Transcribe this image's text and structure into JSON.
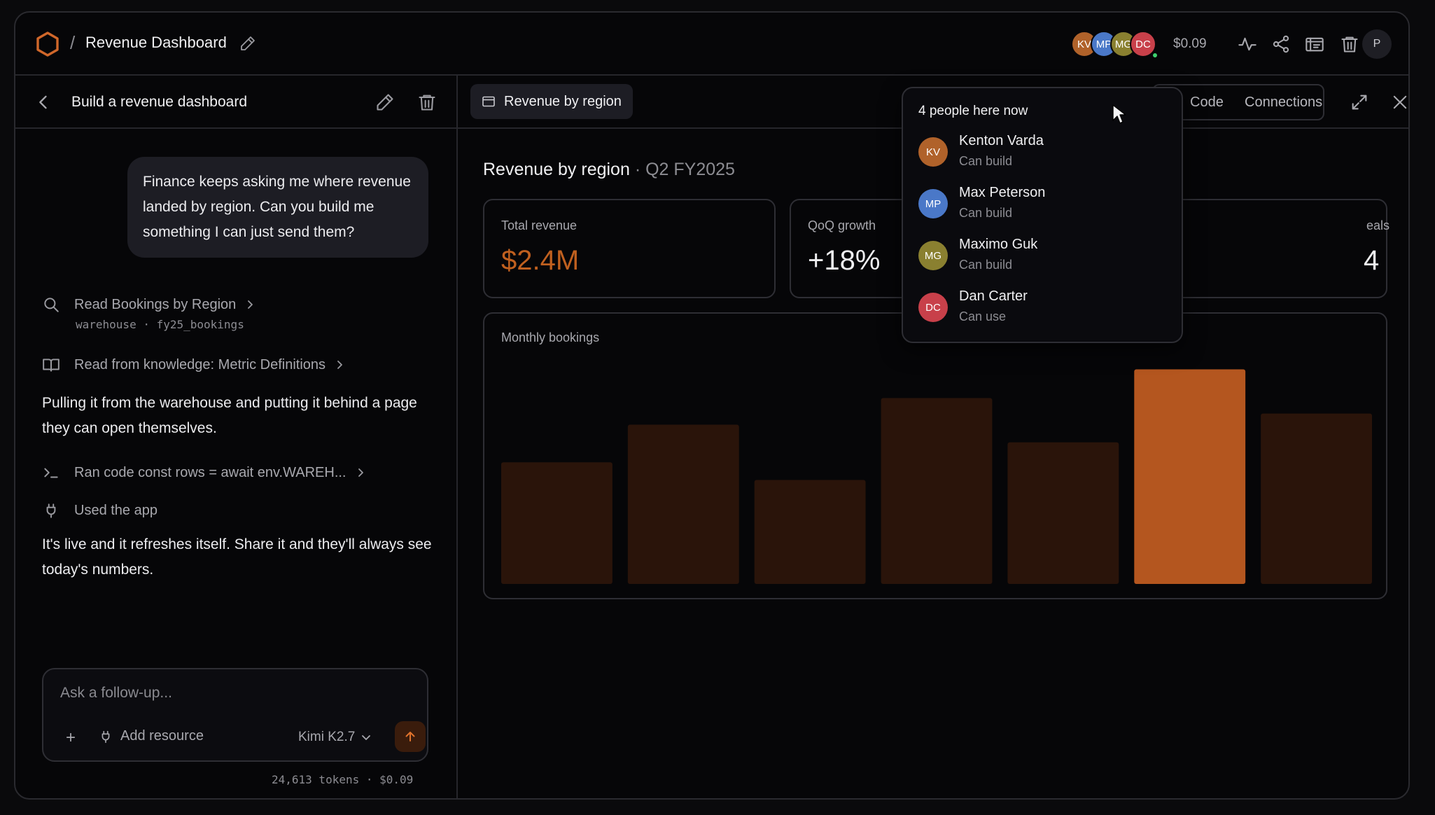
{
  "header": {
    "title": "Revenue Dashboard",
    "slash": "/",
    "cost": "$0.09",
    "user_initial": "P",
    "collaborators": [
      {
        "initials": "KV",
        "color": "#b0622a"
      },
      {
        "initials": "MP",
        "color": "#4a78c8"
      },
      {
        "initials": "MG",
        "color": "#8a8030"
      },
      {
        "initials": "DC",
        "color": "#c8404a"
      }
    ]
  },
  "conversation": {
    "title": "Build a revenue dashboard",
    "user_message": "Finance keeps asking me where revenue landed by region. Can you build me something I can just send them?",
    "steps": [
      {
        "icon": "search-icon",
        "text": "Read Bookings by Region",
        "sub": "warehouse · fy25_bookings"
      },
      {
        "icon": "book-icon",
        "text": "Read from knowledge: Metric Definitions"
      },
      {
        "icon": "terminal-icon",
        "text": "Ran code const rows = await env.WAREH..."
      },
      {
        "icon": "plug-icon",
        "text": "Used the app"
      }
    ],
    "reply_1": "Pulling it from the warehouse and putting it behind a page they can open themselves.",
    "reply_2": "It's live and it refreshes itself. Share it and they'll always see today's numbers."
  },
  "composer": {
    "placeholder": "Ask a follow-up...",
    "plus": "+",
    "add_resource": "Add resource",
    "model": "Kimi K2.7",
    "tokens": "24,613 tokens · $0.09"
  },
  "panel": {
    "tab_label": "Revenue by region",
    "code_label": "Code",
    "connections_label": "Connections"
  },
  "dashboard": {
    "title": "Revenue by region",
    "subtitle": "· Q2 FY2025",
    "accent": "#c0601f",
    "cards": [
      {
        "label": "Total revenue",
        "value": "$2.4M"
      },
      {
        "label": "QoQ growth",
        "value": "+18%"
      },
      {
        "label": "eals",
        "value": "4"
      }
    ],
    "chart_label": "Monthly bookings"
  },
  "chart_data": {
    "type": "bar",
    "title": "",
    "xlabel": "",
    "ylabel": "",
    "categories": [
      "",
      "",
      "",
      "",
      "",
      "",
      ""
    ],
    "values": [
      55,
      72,
      47,
      84,
      64,
      97,
      77
    ],
    "highlight_index": 5,
    "ylim": [
      0,
      100
    ],
    "grid": false,
    "colors": {
      "bar": "#2a140a",
      "highlight": "#b4561f"
    }
  },
  "presence": {
    "heading": "4 people here now",
    "people": [
      {
        "initials": "KV",
        "name": "Kenton Varda",
        "role": "Can build",
        "color": "#b0622a"
      },
      {
        "initials": "MP",
        "name": "Max Peterson",
        "role": "Can build",
        "color": "#4a78c8"
      },
      {
        "initials": "MG",
        "name": "Maximo Guk",
        "role": "Can build",
        "color": "#8a8030"
      },
      {
        "initials": "DC",
        "name": "Dan Carter",
        "role": "Can use",
        "color": "#c8404a"
      }
    ]
  }
}
